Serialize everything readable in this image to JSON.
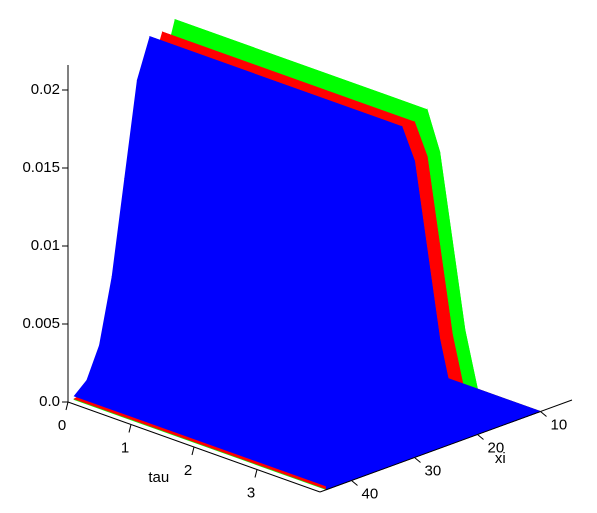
{
  "chart_data": {
    "type": "surface",
    "xlabel": "tau",
    "ylabel": "xi",
    "tau_lim": [
      0,
      4
    ],
    "tau_ticks": [
      0,
      1,
      2,
      3
    ],
    "xi_lim": [
      5,
      45
    ],
    "xi_ticks": [
      10,
      20,
      30,
      40
    ],
    "zlim": [
      0,
      0.0216
    ],
    "zticks": [
      {
        "value": 0,
        "label": "0.0"
      },
      0.005,
      0.01,
      0.015,
      0.02
    ],
    "x": [
      10,
      12,
      14,
      16,
      18,
      20,
      22,
      24,
      26,
      28,
      30,
      32,
      34,
      36,
      38,
      40,
      42,
      44
    ],
    "series": [
      {
        "color": "#00ff00",
        "values": [
          0,
          7e-06,
          5e-05,
          0.00024,
          0.00095,
          0.0029,
          0.007,
          0.013,
          0.019,
          0.022,
          0.019,
          0.013,
          0.007,
          0.0029,
          0.00095,
          0.00024,
          5e-05,
          7e-06
        ]
      },
      {
        "color": "#ff0000",
        "values": [
          0,
          0,
          7e-06,
          5e-05,
          0.00024,
          0.00095,
          0.0029,
          0.007,
          0.013,
          0.019,
          0.0215,
          0.019,
          0.013,
          0.007,
          0.0029,
          0.00095,
          0.00024,
          5e-05
        ]
      },
      {
        "color": "#0000ff",
        "values": [
          0,
          0,
          0,
          7e-06,
          5e-05,
          0.00024,
          0.00095,
          0.0029,
          0.007,
          0.013,
          0.019,
          0.0215,
          0.019,
          0.013,
          0.007,
          0.0029,
          0.00095,
          0.00024
        ]
      }
    ]
  }
}
